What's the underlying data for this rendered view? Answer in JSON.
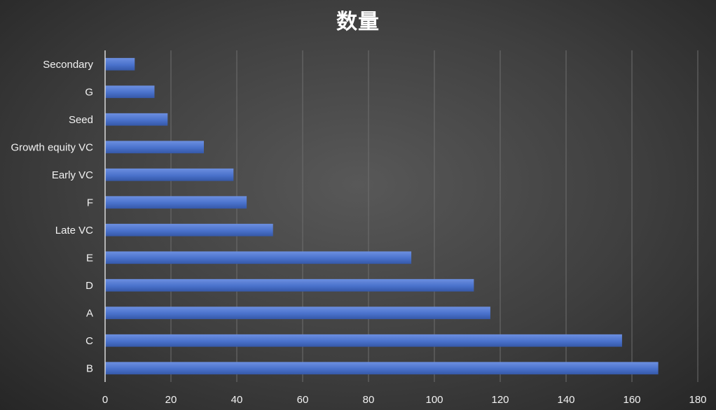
{
  "chart_data": {
    "type": "bar",
    "orientation": "horizontal",
    "title": "数量",
    "xlabel": "",
    "ylabel": "",
    "categories": [
      "B",
      "C",
      "A",
      "D",
      "E",
      "Late VC",
      "F",
      "Early VC",
      "Growth equity VC",
      "Seed",
      "G",
      "Secondary"
    ],
    "values": [
      168,
      157,
      117,
      112,
      93,
      51,
      43,
      39,
      30,
      19,
      15,
      9
    ],
    "xlim": [
      0,
      180
    ],
    "xticks": [
      0,
      20,
      40,
      60,
      80,
      100,
      120,
      140,
      160,
      180
    ],
    "grid": true,
    "legend": "none",
    "colors": {
      "bar": "#4a72cc",
      "bar_highlight": "#6c8fe0",
      "grid": "#6e6e6e",
      "axis": "#d9d9d9",
      "text": "#f2f2f2"
    }
  }
}
